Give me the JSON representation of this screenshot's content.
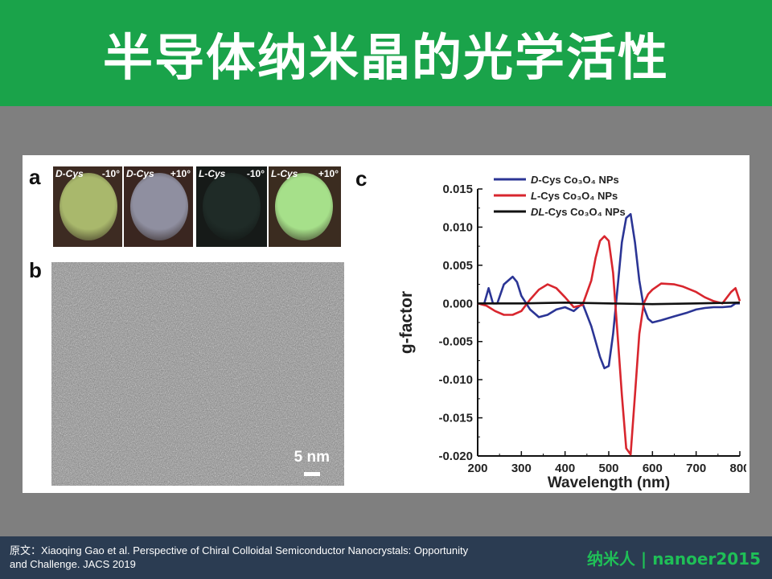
{
  "slide": {
    "title": "半导体纳米晶的光学活性",
    "credit_line1": "原文：Xiaoqing Gao et al. Perspective of Chiral Colloidal Semiconductor Nanocrystals: Opportunity",
    "credit_line2": "and Challenge. JACS 2019",
    "brand_left": "纳米人",
    "brand_right": "nanoer2015"
  },
  "panels": {
    "a": "a",
    "b": "b",
    "c": "c",
    "photos": [
      {
        "name": "D-Cys",
        "angle": "-10°",
        "disc_color": "#a9b86c",
        "bg": "#3d2b22"
      },
      {
        "name": "D-Cys",
        "angle": "+10°",
        "disc_color": "#8f8fa0",
        "bg": "#3a2620"
      },
      {
        "name": "L-Cys",
        "angle": "-10°",
        "disc_color": "#1f2b27",
        "bg": "#161a18"
      },
      {
        "name": "L-Cys",
        "angle": "+10°",
        "disc_color": "#a6e08a",
        "bg": "#3b2c20"
      }
    ],
    "scale_label": "5 nm"
  },
  "chart_data": {
    "type": "line",
    "title": "",
    "xlabel": "Wavelength (nm)",
    "ylabel": "g-factor",
    "xlim": [
      200,
      800
    ],
    "ylim": [
      -0.02,
      0.015
    ],
    "xticks": [
      200,
      300,
      400,
      500,
      600,
      700,
      800
    ],
    "yticks": [
      0.015,
      0.01,
      0.005,
      0.0,
      -0.005,
      -0.01,
      -0.015,
      -0.02
    ],
    "ytick_labels": [
      "0.015",
      "0.010",
      "0.005",
      "0.000",
      "-0.005",
      "-0.010",
      "-0.015",
      "-0.020"
    ],
    "legend_position": "top",
    "series": [
      {
        "name": "D-Cys Co3O4 NPs",
        "legend_prefix": "D",
        "legend_suffix": "-Cys Co₃O₄ NPs",
        "color": "#2b3595",
        "x": [
          200,
          215,
          225,
          235,
          245,
          260,
          280,
          290,
          300,
          320,
          340,
          360,
          380,
          400,
          420,
          440,
          460,
          470,
          480,
          490,
          500,
          510,
          520,
          530,
          540,
          550,
          560,
          570,
          580,
          590,
          600,
          620,
          650,
          680,
          700,
          720,
          740,
          760,
          780,
          790,
          800
        ],
        "y": [
          0.0,
          0.0,
          0.002,
          0.0,
          0.0,
          0.0025,
          0.0035,
          0.0028,
          0.001,
          -0.0008,
          -0.0018,
          -0.0015,
          -0.0008,
          -0.0005,
          -0.001,
          0.0,
          -0.003,
          -0.005,
          -0.007,
          -0.0085,
          -0.0082,
          -0.004,
          0.002,
          0.008,
          0.0112,
          0.0117,
          0.008,
          0.003,
          -0.0005,
          -0.002,
          -0.0025,
          -0.0022,
          -0.0017,
          -0.0012,
          -0.0008,
          -0.0006,
          -0.0005,
          -0.0005,
          -0.0004,
          0.0,
          0.0
        ]
      },
      {
        "name": "L-Cys Co3O4 NPs",
        "legend_prefix": "L",
        "legend_suffix": "-Cys Co₃O₄  NPs",
        "color": "#d8262e",
        "x": [
          200,
          220,
          240,
          260,
          280,
          300,
          320,
          340,
          360,
          380,
          400,
          420,
          440,
          460,
          470,
          480,
          490,
          500,
          510,
          520,
          530,
          540,
          550,
          560,
          570,
          580,
          590,
          600,
          620,
          650,
          670,
          700,
          720,
          740,
          760,
          780,
          790,
          800
        ],
        "y": [
          0.0,
          -0.0003,
          -0.001,
          -0.0015,
          -0.0015,
          -0.001,
          0.0005,
          0.0018,
          0.0025,
          0.002,
          0.0008,
          -0.0005,
          -0.0002,
          0.003,
          0.006,
          0.0082,
          0.0088,
          0.0082,
          0.004,
          -0.004,
          -0.012,
          -0.019,
          -0.0198,
          -0.012,
          -0.004,
          0.0,
          0.0012,
          0.0018,
          0.0026,
          0.0025,
          0.0022,
          0.0015,
          0.0008,
          0.0003,
          0.0,
          0.0015,
          0.002,
          0.0003
        ]
      },
      {
        "name": "DL-Cys Co3O4 NPs",
        "legend_prefix": "DL",
        "legend_suffix": "-Cys Co₃O₄ NPs",
        "color": "#111111",
        "x": [
          200,
          300,
          400,
          500,
          600,
          700,
          800
        ],
        "y": [
          0.0,
          0.0,
          0.0001,
          0.0,
          -0.0001,
          0.0,
          0.0001
        ]
      }
    ]
  }
}
